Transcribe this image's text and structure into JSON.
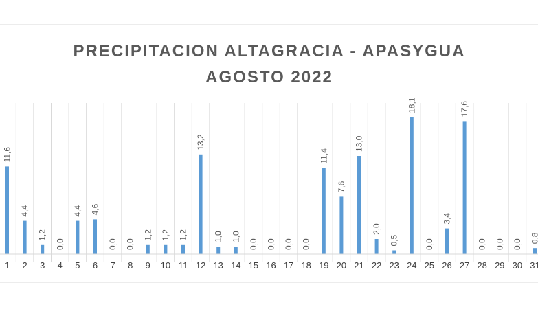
{
  "chart_data": {
    "type": "bar",
    "title": [
      "PRECIPITACION  ALTAGRACIA  -  APASYGUA",
      "AGOSTO  2022"
    ],
    "xlabel": "",
    "ylabel": "",
    "categories": [
      "1",
      "2",
      "3",
      "4",
      "5",
      "6",
      "7",
      "8",
      "9",
      "10",
      "11",
      "12",
      "13",
      "14",
      "15",
      "16",
      "17",
      "18",
      "19",
      "20",
      "21",
      "22",
      "23",
      "24",
      "25",
      "26",
      "27",
      "28",
      "29",
      "30",
      "31"
    ],
    "values": [
      11.6,
      4.4,
      1.2,
      0.0,
      4.4,
      4.6,
      0.0,
      0.0,
      1.2,
      1.2,
      1.2,
      13.2,
      1.0,
      1.0,
      0.0,
      0.0,
      0.0,
      0.0,
      11.4,
      7.6,
      13.0,
      2.0,
      0.5,
      18.1,
      0.0,
      3.4,
      17.6,
      0.0,
      0.0,
      0.0,
      0.8
    ],
    "data_labels": [
      "11,6",
      "4,4",
      "1,2",
      "0,0",
      "4,4",
      "4,6",
      "0,0",
      "0,0",
      "1,2",
      "1,2",
      "1,2",
      "13,2",
      "1,0",
      "1,0",
      "0,0",
      "0,0",
      "0,0",
      "0,0",
      "11,4",
      "7,6",
      "13,0",
      "2,0",
      "0,5",
      "18,1",
      "0,0",
      "3,4",
      "17,6",
      "0,0",
      "0,0",
      "0,0",
      "0,8"
    ],
    "ylim": [
      0,
      20
    ],
    "grid": "vertical",
    "legend": "none",
    "bar_color": "#5B9BD5",
    "grid_color": "#d9d9d9"
  }
}
